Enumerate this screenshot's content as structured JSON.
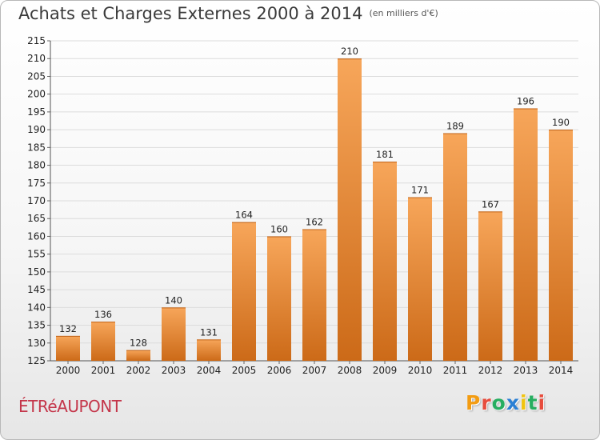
{
  "title": "Achats et Charges Externes 2000 à 2014",
  "unit": "(en milliers d'€)",
  "place": "ÉTRéAUPONT",
  "logo": {
    "letters": [
      "P",
      "r",
      "o",
      "x",
      "i",
      "t",
      "i"
    ],
    "colors": [
      "#f39c12",
      "#e74c3c",
      "#27ae60",
      "#2a7fd4",
      "#f1c40f",
      "#27ae60",
      "#e74c3c"
    ]
  },
  "colors": {
    "bar_top": "#f7a65a",
    "bar_bottom": "#cc6a18"
  },
  "chart_data": {
    "type": "bar",
    "categories": [
      "2000",
      "2001",
      "2002",
      "2003",
      "2004",
      "2005",
      "2006",
      "2007",
      "2008",
      "2009",
      "2010",
      "2011",
      "2012",
      "2013",
      "2014"
    ],
    "values": [
      132,
      136,
      128,
      140,
      131,
      164,
      160,
      162,
      210,
      181,
      171,
      189,
      167,
      196,
      190
    ],
    "title": "Achats et Charges Externes 2000 à 2014",
    "ylim": [
      125,
      215
    ],
    "yticks": [
      125,
      130,
      135,
      140,
      145,
      150,
      155,
      160,
      165,
      170,
      175,
      180,
      185,
      190,
      195,
      200,
      205,
      210,
      215
    ],
    "grid": true
  }
}
